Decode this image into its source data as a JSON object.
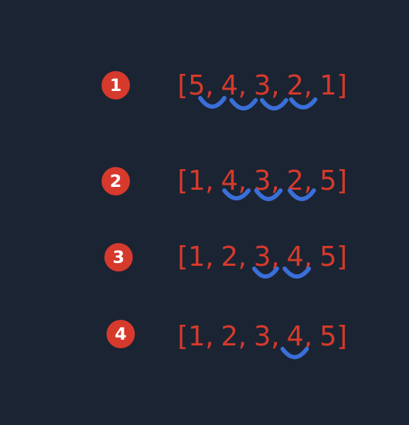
{
  "colors": {
    "background": "#1b2433",
    "badge": "#d63a2c",
    "badge_text": "#ffffff",
    "array_text": "#d63a2c",
    "swap_arc": "#3a6fd8"
  },
  "steps": [
    {
      "number": "1",
      "open": "[",
      "close": "]",
      "values": [
        "5",
        "4",
        "3",
        "2",
        "1"
      ],
      "separator": ","
    },
    {
      "number": "2",
      "open": "[",
      "close": "]",
      "values": [
        "1",
        "4",
        "3",
        "2",
        "5"
      ],
      "separator": ","
    },
    {
      "number": "3",
      "open": "[",
      "close": "]",
      "values": [
        "1",
        "2",
        "3",
        "4",
        "5"
      ],
      "separator": ","
    },
    {
      "number": "4",
      "open": "[",
      "close": "]",
      "values": [
        "1",
        "2",
        "3",
        "4",
        "5"
      ],
      "separator": ","
    }
  ]
}
